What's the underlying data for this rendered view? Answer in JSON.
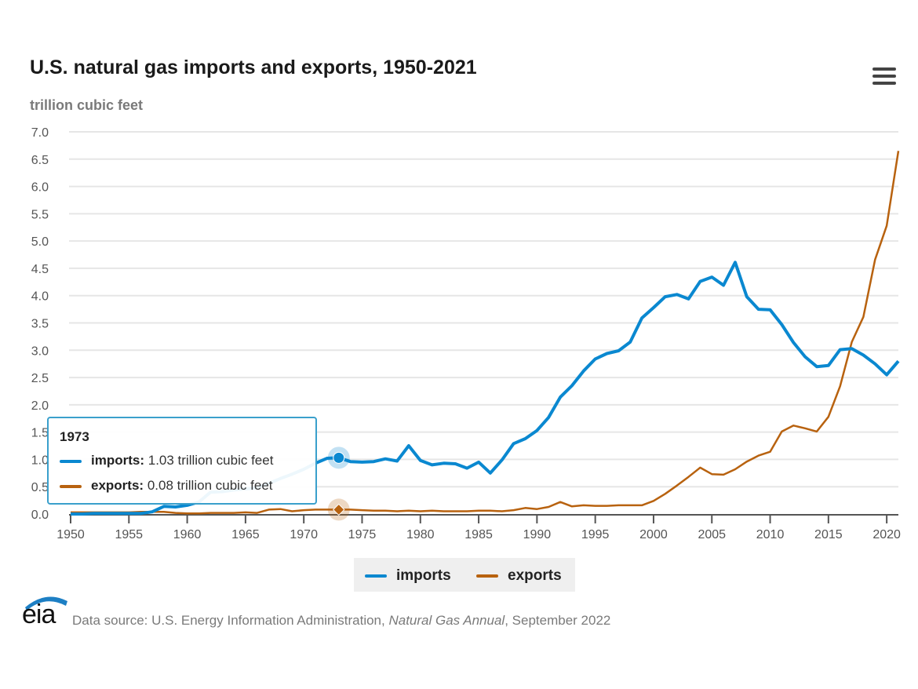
{
  "header": {
    "title": "U.S. natural gas imports and exports, 1950-2021",
    "units": "trillion cubic feet",
    "menu_icon": "hamburger-menu-icon"
  },
  "tooltip": {
    "year": "1973",
    "rows": [
      {
        "label": "imports:",
        "value": "1.03 trillion cubic feet"
      },
      {
        "label": "exports:",
        "value": "0.08 trillion cubic feet"
      }
    ]
  },
  "legend": [
    {
      "label": "imports",
      "color": "#0a88d0"
    },
    {
      "label": "exports",
      "color": "#b8620f"
    }
  ],
  "footer": {
    "logo": "eia",
    "source_prefix": "Data source: U.S. Energy Information Administration, ",
    "source_publication": "Natural Gas Annual",
    "source_suffix": ", September 2022"
  },
  "chart_data": {
    "type": "line",
    "title": "U.S. natural gas imports and exports, 1950-2021",
    "xlabel": "",
    "ylabel": "trillion cubic feet",
    "xlim": [
      1950,
      2021
    ],
    "ylim": [
      0,
      7
    ],
    "yticks": [
      "0.0",
      "0.5",
      "1.0",
      "1.5",
      "2.0",
      "2.5",
      "3.0",
      "3.5",
      "4.0",
      "4.5",
      "5.0",
      "5.5",
      "6.0",
      "6.5",
      "7.0"
    ],
    "xticks": [
      "1950",
      "1955",
      "1960",
      "1965",
      "1970",
      "1975",
      "1980",
      "1985",
      "1990",
      "1995",
      "2000",
      "2005",
      "2010",
      "2015",
      "2020"
    ],
    "grid": true,
    "legend_position": "bottom-center",
    "highlight_year": 1973,
    "x": [
      1950,
      1951,
      1952,
      1953,
      1954,
      1955,
      1956,
      1957,
      1958,
      1959,
      1960,
      1961,
      1962,
      1963,
      1964,
      1965,
      1966,
      1967,
      1968,
      1969,
      1970,
      1971,
      1972,
      1973,
      1974,
      1975,
      1976,
      1977,
      1978,
      1979,
      1980,
      1981,
      1982,
      1983,
      1984,
      1985,
      1986,
      1987,
      1988,
      1989,
      1990,
      1991,
      1992,
      1993,
      1994,
      1995,
      1996,
      1997,
      1998,
      1999,
      2000,
      2001,
      2002,
      2003,
      2004,
      2005,
      2006,
      2007,
      2008,
      2009,
      2010,
      2011,
      2012,
      2013,
      2014,
      2015,
      2016,
      2017,
      2018,
      2019,
      2020,
      2021
    ],
    "series": [
      {
        "name": "imports",
        "color": "#0a88d0",
        "values": [
          0.0,
          0.0,
          0.01,
          0.01,
          0.01,
          0.01,
          0.01,
          0.04,
          0.14,
          0.13,
          0.16,
          0.22,
          0.4,
          0.41,
          0.44,
          0.46,
          0.48,
          0.56,
          0.65,
          0.73,
          0.82,
          0.93,
          1.02,
          1.03,
          0.96,
          0.95,
          0.96,
          1.01,
          0.97,
          1.25,
          0.98,
          0.9,
          0.93,
          0.92,
          0.84,
          0.95,
          0.75,
          0.99,
          1.29,
          1.38,
          1.53,
          1.77,
          2.14,
          2.35,
          2.62,
          2.84,
          2.94,
          2.99,
          3.15,
          3.59,
          3.78,
          3.98,
          4.02,
          3.94,
          4.26,
          4.34,
          4.19,
          4.61,
          3.98,
          3.75,
          3.74,
          3.47,
          3.14,
          2.88,
          2.7,
          2.72,
          3.01,
          3.03,
          2.91,
          2.75,
          2.55,
          2.8
        ]
      },
      {
        "name": "exports",
        "color": "#b8620f",
        "values": [
          0.03,
          0.03,
          0.03,
          0.03,
          0.03,
          0.03,
          0.04,
          0.04,
          0.04,
          0.02,
          0.01,
          0.01,
          0.02,
          0.02,
          0.02,
          0.03,
          0.02,
          0.08,
          0.09,
          0.05,
          0.07,
          0.08,
          0.08,
          0.08,
          0.08,
          0.07,
          0.06,
          0.06,
          0.05,
          0.06,
          0.05,
          0.06,
          0.05,
          0.05,
          0.05,
          0.06,
          0.06,
          0.05,
          0.07,
          0.11,
          0.09,
          0.13,
          0.22,
          0.14,
          0.16,
          0.15,
          0.15,
          0.16,
          0.16,
          0.16,
          0.24,
          0.37,
          0.52,
          0.68,
          0.85,
          0.73,
          0.72,
          0.82,
          0.96,
          1.07,
          1.14,
          1.51,
          1.62,
          1.57,
          1.51,
          1.78,
          2.34,
          3.15,
          3.61,
          4.66,
          5.28,
          6.65
        ]
      }
    ]
  }
}
